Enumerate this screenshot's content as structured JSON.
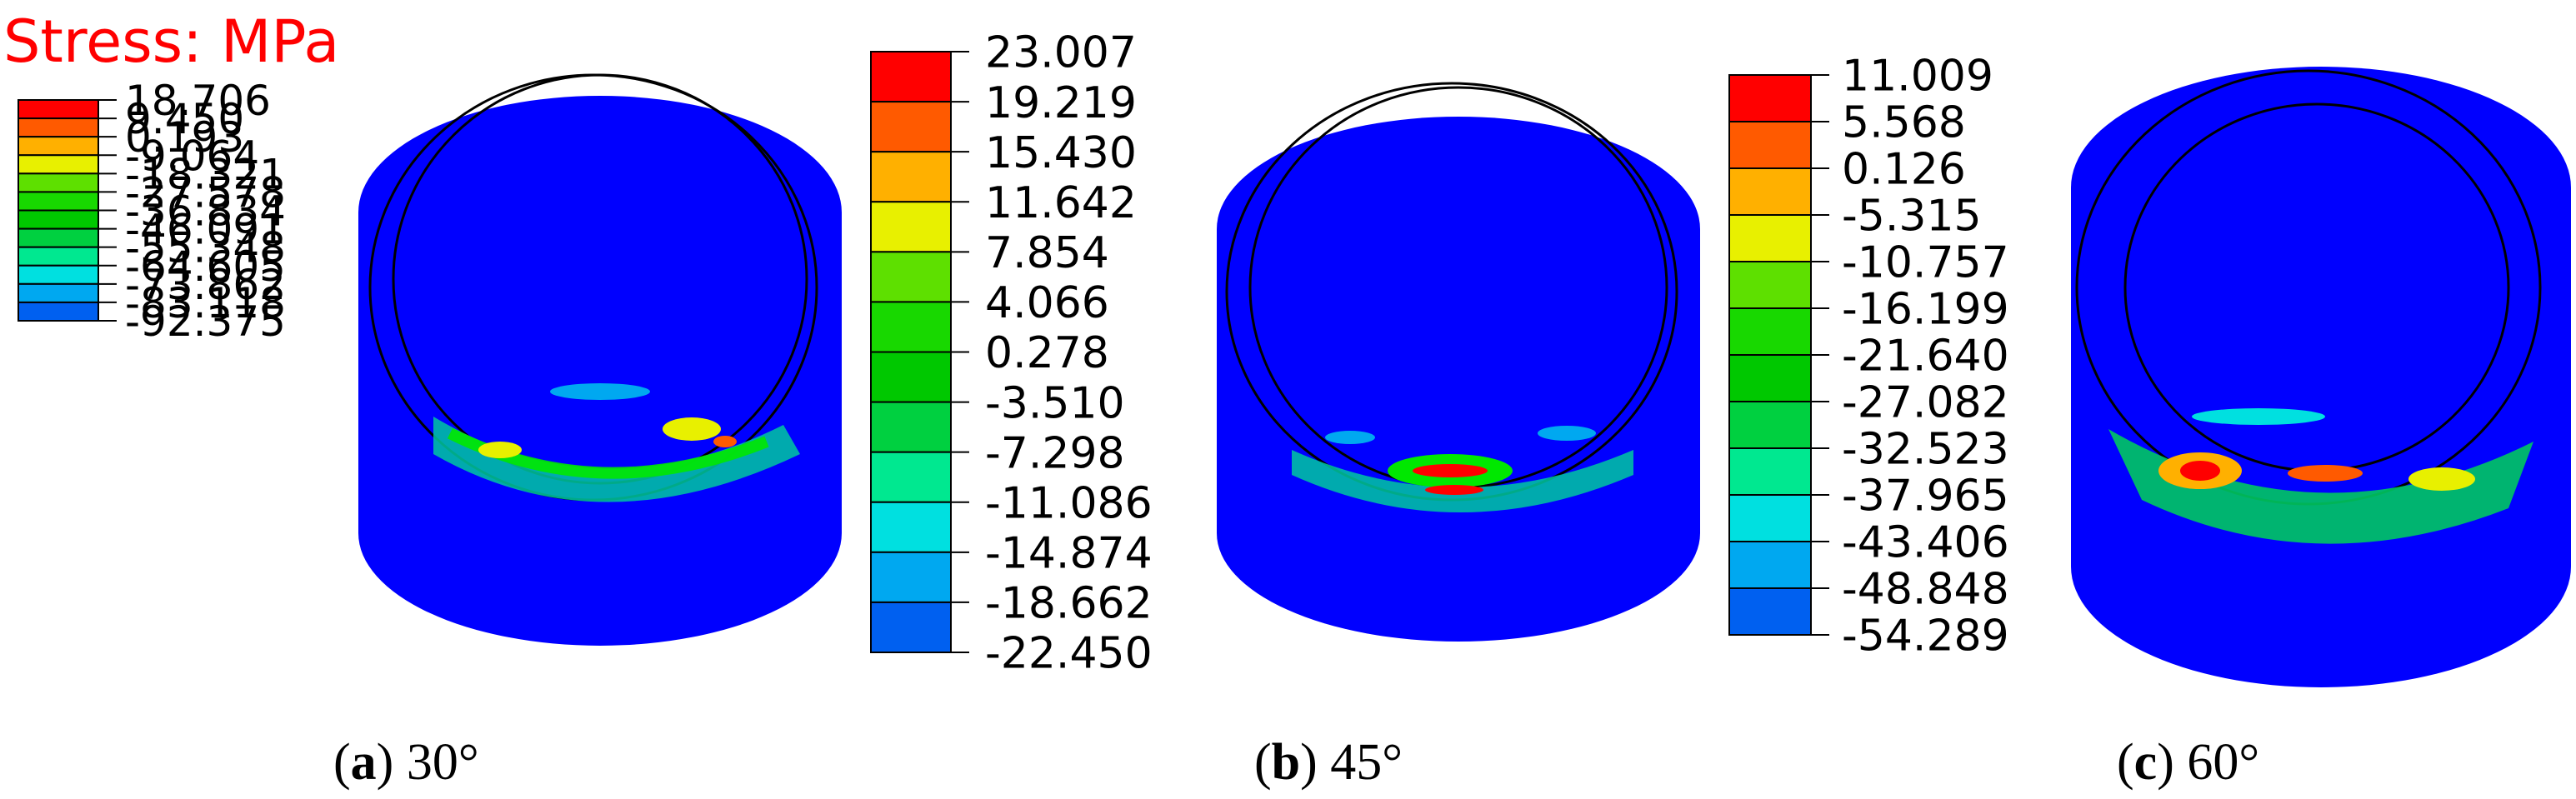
{
  "stress_title": "Stress: MPa",
  "panels": [
    {
      "id": "a",
      "letter": "a",
      "angle": "30°",
      "legend_values": [
        "18.706",
        "9.450",
        "0.193",
        "-9.064",
        "-18.321",
        "-27.578",
        "-36.834",
        "-46.091",
        "-55.348",
        "-64.605",
        "-73.862",
        "-83.118",
        "-92.375"
      ]
    },
    {
      "id": "b",
      "letter": "b",
      "angle": "45°",
      "legend_values": [
        "23.007",
        "19.219",
        "15.430",
        "11.642",
        "7.854",
        "4.066",
        "0.278",
        "-3.510",
        "-7.298",
        "-11.086",
        "-14.874",
        "-18.662",
        "-22.450"
      ]
    },
    {
      "id": "c",
      "letter": "c",
      "angle": "60°",
      "legend_values": [
        "11.009",
        "5.568",
        "0.126",
        "-5.315",
        "-10.757",
        "-16.199",
        "-21.640",
        "-27.082",
        "-32.523",
        "-37.965",
        "-43.406",
        "-48.848",
        "-54.289"
      ]
    }
  ],
  "colormap": [
    "#ff0000",
    "#ff5a00",
    "#ffb000",
    "#e8f000",
    "#5ee000",
    "#18d800",
    "#00c800",
    "#00d040",
    "#00e890",
    "#00e0e0",
    "#00a8f0",
    "#0060f0",
    "#0000ff"
  ],
  "colors": {
    "title": "#ff0000",
    "body_blue": "#0000ff",
    "outline": "#000000"
  }
}
